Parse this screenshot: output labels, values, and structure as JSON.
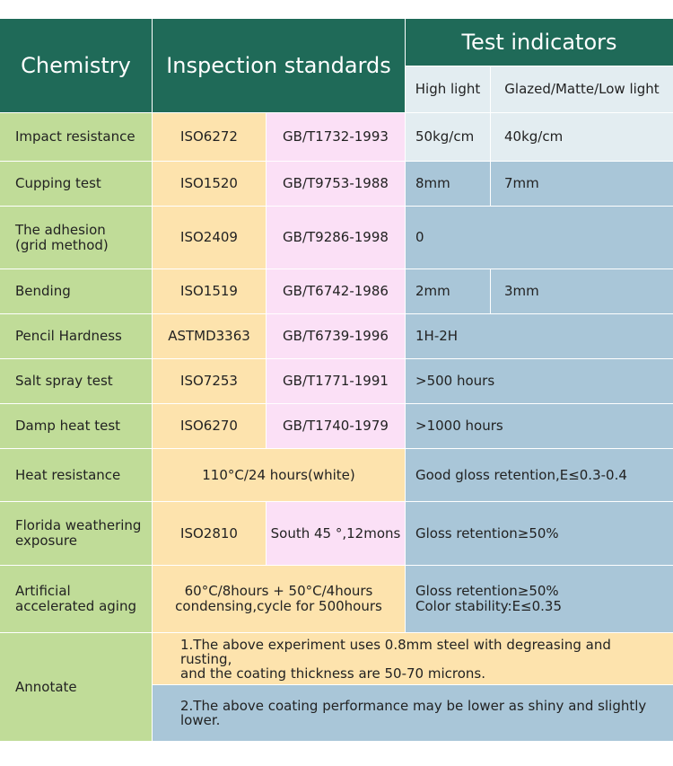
{
  "header": {
    "chemistry": "Chemistry",
    "inspection_standards": "Inspection standards",
    "test_indicators": "Test indicators",
    "high_light": "High light",
    "glazed_low_light": "Glazed/Matte/Low light"
  },
  "rows": [
    {
      "name": "Impact resistance",
      "iso": "ISO6272",
      "gb": "GB/T1732-1993",
      "high": "50kg/cm",
      "low": "40kg/cm"
    },
    {
      "name": "Cupping test",
      "iso": "ISO1520",
      "gb": "GB/T9753-1988",
      "high": "8mm",
      "low": "7mm"
    },
    {
      "name": "The adhesion\n(grid method)",
      "iso": "ISO2409",
      "gb": "GB/T9286-1998",
      "value": "0"
    },
    {
      "name": "Bending",
      "iso": "ISO1519",
      "gb": "GB/T6742-1986",
      "high": "2mm",
      "low": "3mm"
    },
    {
      "name": "Pencil Hardness",
      "iso": "ASTMD3363",
      "gb": "GB/T6739-1996",
      "value": "1H-2H"
    },
    {
      "name": "Salt spray test",
      "iso": "ISO7253",
      "gb": "GB/T1771-1991",
      "value": ">500 hours"
    },
    {
      "name": "Damp heat test",
      "iso": "ISO6270",
      "gb": "GB/T1740-1979",
      "value": ">1000 hours"
    },
    {
      "name": "Heat resistance",
      "standard": "110°C/24 hours(white)",
      "value": "Good gloss retention,E≤0.3-0.4"
    },
    {
      "name": "Florida weathering\nexposure",
      "iso": "ISO2810",
      "gb": "South 45 °,12mons",
      "value": "Gloss retention≥50%"
    },
    {
      "name": "Artificial\naccelerated aging",
      "standard": "60°C/8hours + 50°C/4hours\ncondensing,cycle for 500hours",
      "value": "Gloss retention≥50%\nColor stability:E≤0.35"
    }
  ],
  "annotate": {
    "label": "Annotate",
    "note1": "1.The above experiment uses 0.8mm steel with degreasing and rusting,\nand the coating thickness are 50-70 microns.",
    "note2": "2.The above coating performance may be lower as shiny and slightly\nlower."
  },
  "colors": {
    "header": "#1f6a58",
    "header_sub": "#e3edf1",
    "item_column": "#c0dc98",
    "iso_column": "#fde3ad",
    "gb_column": "#fbe0f6",
    "indicator": "#a9c6d8"
  }
}
